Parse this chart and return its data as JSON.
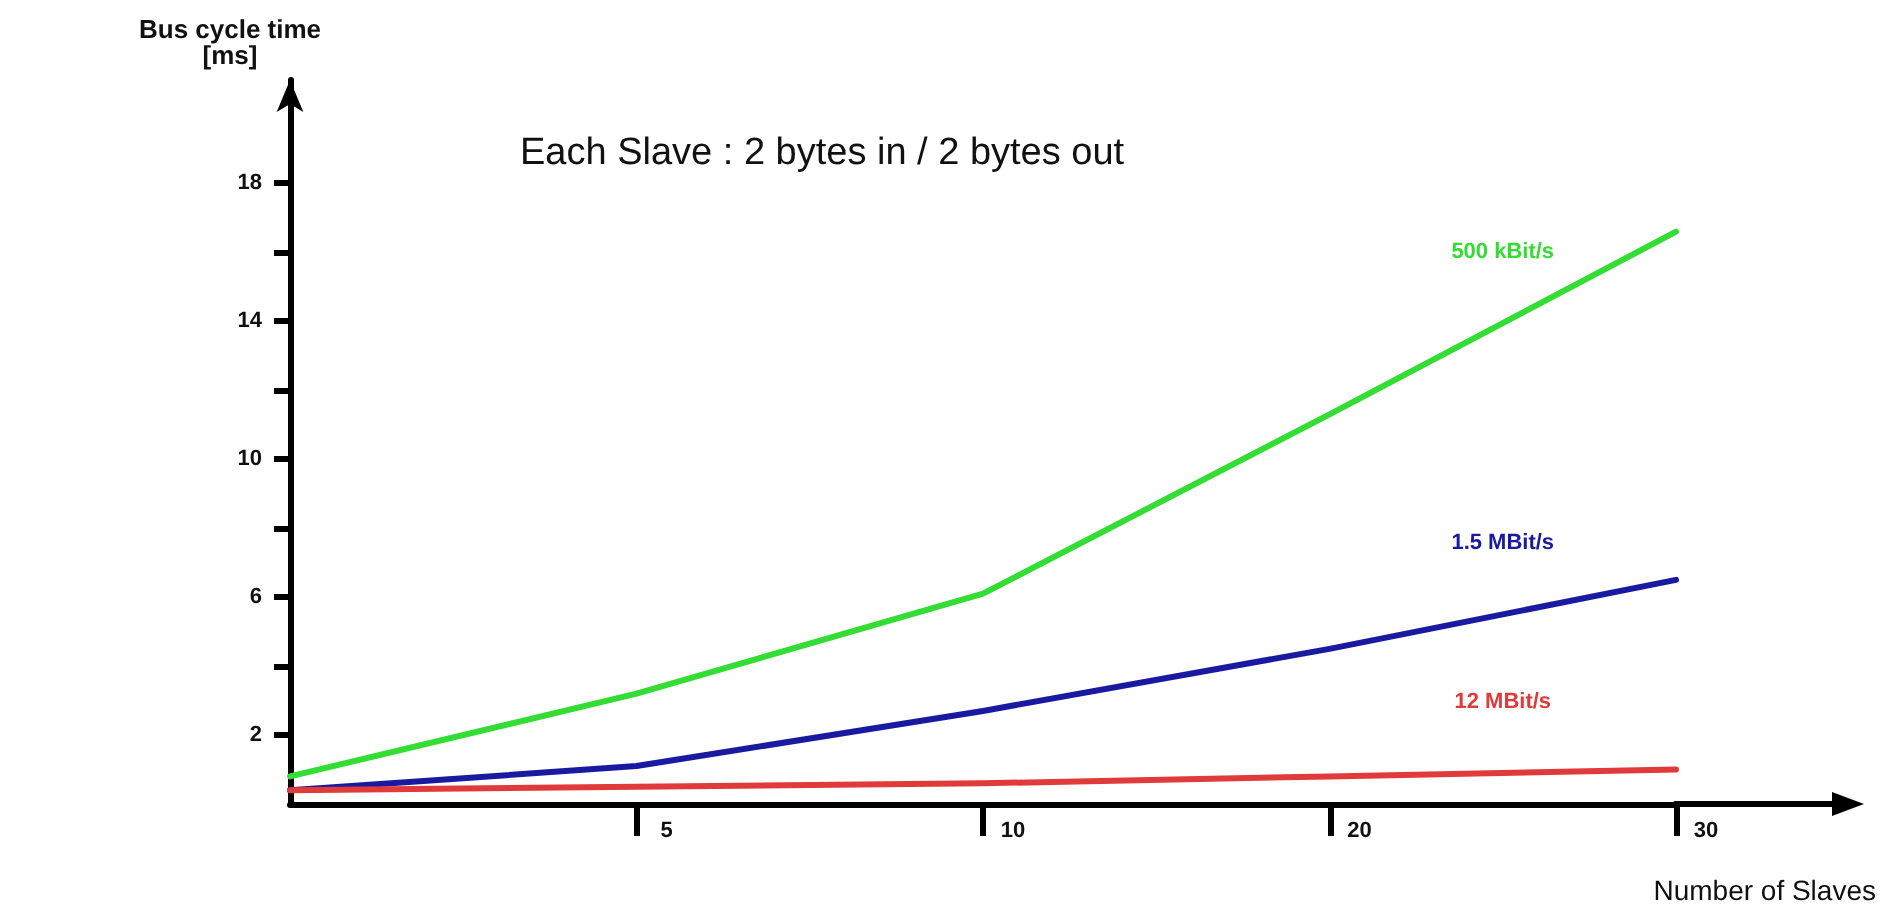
{
  "chart_data": {
    "type": "line",
    "title": "Each Slave : 2 bytes in / 2 bytes out",
    "xlabel": "Number of Slaves",
    "ylabel": "Bus cycle time\n[ms]",
    "categories": [
      null,
      "5",
      "10",
      "20",
      "30"
    ],
    "series": [
      {
        "name": "500 kBit/s",
        "color": "#33dd33",
        "values": [
          0.8,
          3.2,
          6.1,
          11.3,
          16.6
        ]
      },
      {
        "name": "1.5 MBit/s",
        "color": "#1a1aa0",
        "values": [
          0.4,
          1.1,
          2.7,
          4.5,
          6.5
        ]
      },
      {
        "name": "12 MBit/s",
        "color": "#e03a3a",
        "values": [
          0.4,
          0.5,
          0.6,
          0.8,
          1.0
        ]
      }
    ],
    "ylim": [
      0,
      21
    ],
    "yticks": [
      2,
      {
        "value": 4,
        "label": null
      },
      6,
      {
        "value": 8,
        "label": null
      },
      10,
      {
        "value": 12,
        "label": null
      },
      14,
      {
        "value": 16,
        "label": null
      },
      18
    ],
    "grid": false,
    "legend": false,
    "marker": "none",
    "line_style": "solid"
  }
}
